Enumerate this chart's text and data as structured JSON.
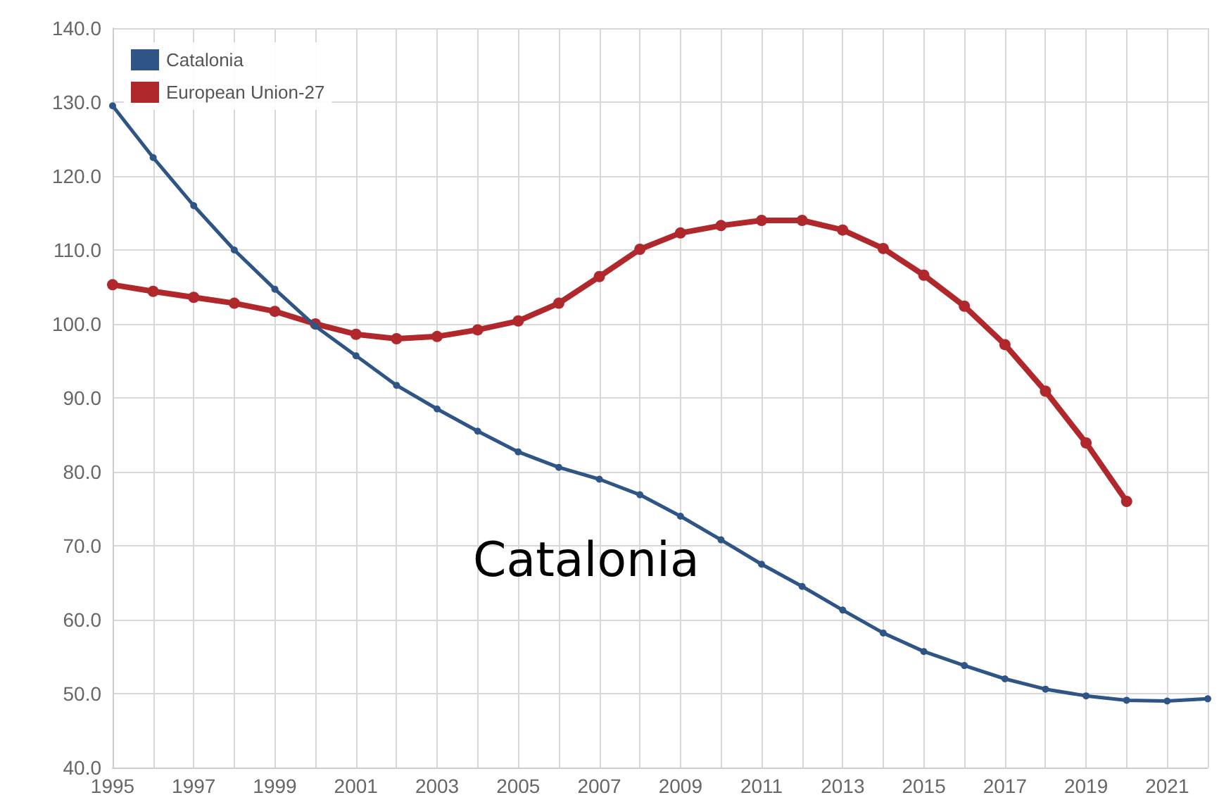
{
  "chart_data": {
    "type": "line",
    "x": [
      1995,
      1996,
      1997,
      1998,
      1999,
      2000,
      2001,
      2002,
      2003,
      2004,
      2005,
      2006,
      2007,
      2008,
      2009,
      2010,
      2011,
      2012,
      2013,
      2014,
      2015,
      2016,
      2017,
      2018,
      2019,
      2020,
      2021,
      2022
    ],
    "series": [
      {
        "name": "Catalonia",
        "color": "#2e5585",
        "values": [
          129.5,
          122.5,
          116,
          110,
          104.7,
          99.7,
          95.7,
          91.7,
          88.5,
          85.5,
          82.7,
          80.6,
          79,
          76.9,
          74,
          70.8,
          67.5,
          64.5,
          61.3,
          58.2,
          55.7,
          53.8,
          52,
          50.6,
          49.7,
          49.1,
          49,
          49.3
        ]
      },
      {
        "name": "European Union-27",
        "color": "#b0282c",
        "values": [
          105.3,
          104.4,
          103.6,
          102.8,
          101.7,
          100,
          98.6,
          98,
          98.3,
          99.2,
          100.4,
          102.8,
          106.4,
          110.1,
          112.3,
          113.3,
          114,
          114,
          112.7,
          110.2,
          106.6,
          102.4,
          97.2,
          90.9,
          83.9,
          76,
          null,
          null
        ]
      }
    ],
    "annotations": [
      "Catalonia"
    ],
    "xlim": [
      1995,
      2022
    ],
    "xticks": [
      1995,
      {
        "value": 1996,
        "label": null
      },
      1997,
      {
        "value": 1998,
        "label": null
      },
      1999,
      {
        "value": 2000,
        "label": null
      },
      2001,
      {
        "value": 2002,
        "label": null
      },
      2003,
      {
        "value": 2004,
        "label": null
      },
      2005,
      {
        "value": 2006,
        "label": null
      },
      2007,
      {
        "value": 2008,
        "label": null
      },
      2009,
      {
        "value": 2010,
        "label": null
      },
      2011,
      {
        "value": 2012,
        "label": null
      },
      2013,
      {
        "value": 2014,
        "label": null
      },
      2015,
      {
        "value": 2016,
        "label": null
      },
      2017,
      {
        "value": 2018,
        "label": null
      },
      2019,
      {
        "value": 2020,
        "label": null
      },
      2021,
      {
        "value": 2022,
        "label": null
      }
    ],
    "ylim": [
      40,
      140
    ],
    "yticks": [
      {
        "value": 40,
        "label": "40.0"
      },
      {
        "value": 50,
        "label": "50.0"
      },
      {
        "value": 60,
        "label": "60.0"
      },
      {
        "value": 70,
        "label": "70.0"
      },
      {
        "value": 80,
        "label": "80.0"
      },
      {
        "value": 90,
        "label": "90.0"
      },
      {
        "value": 100,
        "label": "100.0"
      },
      {
        "value": 110,
        "label": "110.0"
      },
      {
        "value": 120,
        "label": "120.0"
      },
      {
        "value": 130,
        "label": "130.0"
      },
      {
        "value": 140,
        "label": "140.0"
      }
    ],
    "grid": true,
    "legend": "top left",
    "marker": "circle",
    "line_style": "solid"
  }
}
